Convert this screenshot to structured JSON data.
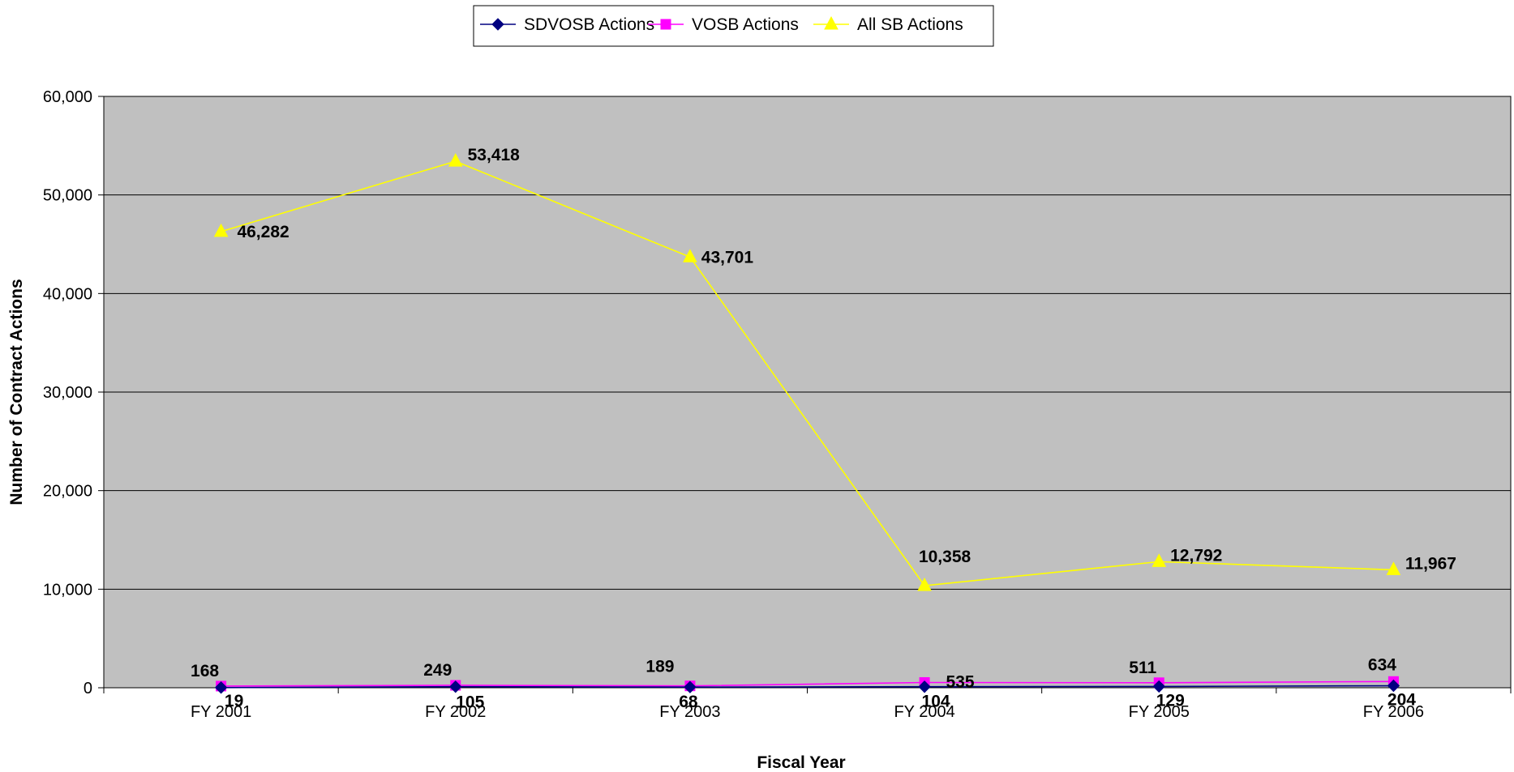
{
  "chart_data": {
    "type": "line",
    "categories": [
      "FY 2001",
      "FY 2002",
      "FY 2003",
      "FY 2004",
      "FY 2005",
      "FY 2006"
    ],
    "series": [
      {
        "name": "SDVOSB Actions",
        "values": [
          19,
          105,
          68,
          104,
          129,
          204
        ],
        "color": "#000080",
        "marker": "diamond",
        "label_text": [
          "19",
          "105",
          "68",
          "104",
          "129",
          "204"
        ]
      },
      {
        "name": "VOSB Actions",
        "values": [
          168,
          249,
          189,
          535,
          511,
          634
        ],
        "color": "#FF00FF",
        "marker": "square",
        "label_text": [
          "168",
          "249",
          "189",
          "535",
          "511",
          "634"
        ]
      },
      {
        "name": "All SB Actions",
        "values": [
          46282,
          53418,
          43701,
          10358,
          12792,
          11967
        ],
        "color": "#FFFF00",
        "marker": "triangle",
        "label_text": [
          "46,282",
          "53,418",
          "43,701",
          "10,358",
          "12,792",
          "11,967"
        ]
      }
    ],
    "xlabel": "Fiscal Year",
    "ylabel": "Number of Contract Actions",
    "ylim": [
      0,
      60000
    ],
    "yticks": [
      0,
      10000,
      20000,
      30000,
      40000,
      50000,
      60000
    ],
    "ytick_labels": [
      "0",
      "10,000",
      "20,000",
      "30,000",
      "40,000",
      "50,000",
      "60,000"
    ],
    "grid": "horizontal",
    "legend_position": "top-center",
    "plot_background": "#C0C0C0"
  }
}
